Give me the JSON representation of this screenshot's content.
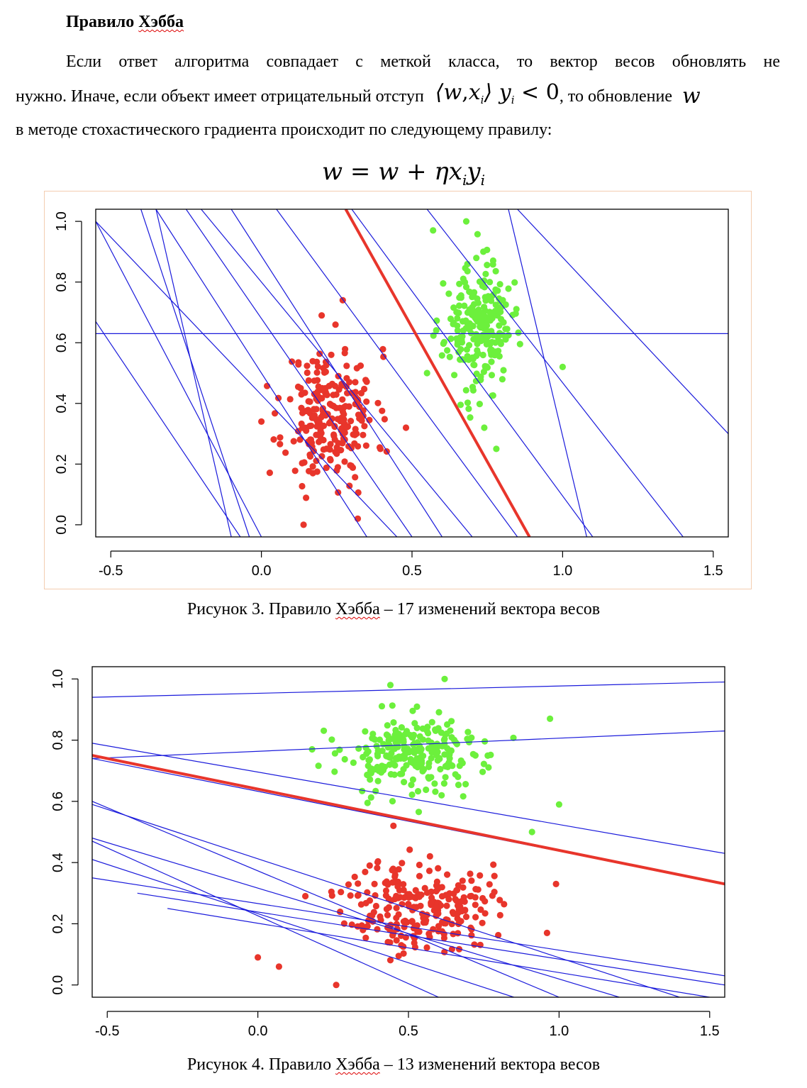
{
  "heading": {
    "prefix": "Правило ",
    "name": "Хэбба"
  },
  "paragraph": {
    "line1": "Если ответ алгоритма совпадает с меткой класса, то вектор весов обновлять не",
    "line2_start": "нужно. Иначе, если объект имеет отрицательный отступ",
    "margin_w": "w",
    "margin_comma": ",",
    "margin_x": "x",
    "margin_i": "i",
    "margin_y": "y",
    "margin_yi": "i",
    "margin_lt0": "< 0",
    "line2_mid": ", то обновление",
    "w_symbol": "w",
    "line3": "в методе стохастического градиента происходит по следующему правилу:"
  },
  "formula": {
    "main": "w = w + ηx",
    "sub1": "i",
    "y": "y",
    "sub2": "i"
  },
  "figures": [
    {
      "caption_prefix": "Рисунок 3. Правило ",
      "caption_name": "Хэбба",
      "caption_suffix": " – 17 изменений вектора весов",
      "colors": {
        "class_neg": "#e8352b",
        "class_pos": "#6cf03c",
        "iteration_line": "#1a1adb",
        "final_line": "#e8352b"
      },
      "chart_data": {
        "type": "scatter",
        "xlim": [
          -0.55,
          1.55
        ],
        "ylim": [
          -0.04,
          1.04
        ],
        "x_ticks": [
          "-0.5",
          "0.0",
          "0.5",
          "1.0",
          "1.5"
        ],
        "y_ticks": [
          "0.0",
          "0.2",
          "0.4",
          "0.6",
          "0.8",
          "1.0"
        ],
        "x_tick_values": [
          -0.5,
          0,
          0.5,
          1,
          1.5
        ],
        "y_tick_values": [
          0,
          0.2,
          0.4,
          0.6,
          0.8,
          1
        ],
        "clusters": [
          {
            "color": "#e8352b",
            "center": [
              0.23,
              0.36
            ],
            "sd": [
              0.075,
              0.11
            ],
            "n": 230,
            "seed": 11,
            "extras": [
              [
                0.14,
                0.0
              ],
              [
                0.32,
                0.02
              ],
              [
                0.27,
                0.74
              ],
              [
                0.2,
                0.69
              ],
              [
                0.0,
                0.34
              ],
              [
                0.48,
                0.32
              ]
            ]
          },
          {
            "color": "#6cf03c",
            "center": [
              0.72,
              0.65
            ],
            "sd": [
              0.055,
              0.1
            ],
            "n": 230,
            "seed": 23,
            "extras": [
              [
                0.68,
                1.0
              ],
              [
                0.57,
                0.97
              ],
              [
                0.78,
                0.25
              ],
              [
                0.74,
                0.32
              ],
              [
                1.0,
                0.52
              ],
              [
                0.55,
                0.5
              ]
            ]
          }
        ],
        "iteration_lines": [
          [
            [
              0.28,
              1.04
            ],
            [
              0.89,
              -0.04
            ]
          ],
          [
            [
              -0.55,
              1.0
            ],
            [
              0.0,
              -0.04
            ]
          ],
          [
            [
              -0.55,
              0.67
            ],
            [
              -0.07,
              -0.04
            ]
          ],
          [
            [
              -0.35,
              1.04
            ],
            [
              -0.1,
              -0.04
            ]
          ],
          [
            [
              -0.4,
              1.04
            ],
            [
              -0.04,
              -0.04
            ]
          ],
          [
            [
              -0.1,
              1.04
            ],
            [
              0.6,
              -0.04
            ]
          ],
          [
            [
              0.05,
              1.04
            ],
            [
              0.85,
              -0.04
            ]
          ],
          [
            [
              0.3,
              1.04
            ],
            [
              1.1,
              -0.04
            ]
          ],
          [
            [
              0.55,
              1.04
            ],
            [
              1.4,
              -0.04
            ]
          ],
          [
            [
              0.85,
              1.04
            ],
            [
              1.55,
              0.3
            ]
          ],
          [
            [
              0.82,
              1.04
            ],
            [
              1.08,
              -0.04
            ]
          ],
          [
            [
              -0.2,
              1.04
            ],
            [
              0.7,
              -0.04
            ]
          ],
          [
            [
              -0.25,
              1.04
            ],
            [
              0.5,
              -0.04
            ]
          ],
          [
            [
              -0.35,
              1.04
            ],
            [
              0.35,
              -0.04
            ]
          ],
          [
            [
              -0.55,
              1.0
            ],
            [
              0.45,
              -0.04
            ]
          ],
          [
            [
              -0.55,
              0.63
            ],
            [
              1.55,
              0.63
            ]
          ]
        ],
        "final_line": [
          [
            0.28,
            1.04
          ],
          [
            0.89,
            -0.04
          ]
        ]
      }
    },
    {
      "caption_prefix": "Рисунок 4. Правило ",
      "caption_name": "Хэбба",
      "caption_suffix": " – 13 изменений вектора весов",
      "colors": {
        "class_neg": "#e8352b",
        "class_pos": "#6cf03c",
        "iteration_line": "#1a1adb",
        "final_line": "#e8352b"
      },
      "chart_data": {
        "type": "scatter",
        "xlim": [
          -0.55,
          1.55
        ],
        "ylim": [
          -0.04,
          1.04
        ],
        "x_ticks": [
          "-0.5",
          "0.0",
          "0.5",
          "1.0",
          "1.5"
        ],
        "y_ticks": [
          "0.0",
          "0.2",
          "0.4",
          "0.6",
          "0.8",
          "1.0"
        ],
        "x_tick_values": [
          -0.5,
          0,
          0.5,
          1,
          1.5
        ],
        "y_tick_values": [
          0,
          0.2,
          0.4,
          0.6,
          0.8,
          1
        ],
        "clusters": [
          {
            "color": "#e8352b",
            "center": [
              0.53,
              0.26
            ],
            "sd": [
              0.12,
              0.075
            ],
            "n": 240,
            "seed": 37,
            "extras": [
              [
                0.0,
                0.09
              ],
              [
                0.07,
                0.06
              ],
              [
                0.26,
                0.0
              ],
              [
                0.96,
                0.17
              ],
              [
                0.99,
                0.33
              ],
              [
                0.45,
                0.52
              ]
            ]
          },
          {
            "color": "#6cf03c",
            "center": [
              0.52,
              0.75
            ],
            "sd": [
              0.12,
              0.065
            ],
            "n": 240,
            "seed": 53,
            "extras": [
              [
                0.62,
                1.0
              ],
              [
                0.44,
                0.98
              ],
              [
                0.97,
                0.87
              ],
              [
                1.0,
                0.59
              ],
              [
                0.91,
                0.5
              ],
              [
                0.18,
                0.77
              ]
            ]
          }
        ],
        "iteration_lines": [
          [
            [
              -0.55,
              0.94
            ],
            [
              1.55,
              0.99
            ]
          ],
          [
            [
              -0.55,
              0.74
            ],
            [
              1.55,
              0.83
            ]
          ],
          [
            [
              -0.55,
              0.79
            ],
            [
              1.55,
              0.43
            ]
          ],
          [
            [
              -0.55,
              0.74
            ],
            [
              1.55,
              0.33
            ]
          ],
          [
            [
              -0.55,
              0.59
            ],
            [
              1.4,
              -0.04
            ]
          ],
          [
            [
              -0.55,
              0.48
            ],
            [
              1.2,
              -0.04
            ]
          ],
          [
            [
              -0.55,
              0.41
            ],
            [
              0.85,
              -0.04
            ]
          ],
          [
            [
              -0.55,
              0.47
            ],
            [
              0.6,
              -0.04
            ]
          ],
          [
            [
              -0.55,
              0.35
            ],
            [
              1.55,
              0.03
            ]
          ],
          [
            [
              -0.4,
              0.3
            ],
            [
              1.55,
              0.0
            ]
          ],
          [
            [
              -0.3,
              0.25
            ],
            [
              1.5,
              -0.04
            ]
          ],
          [
            [
              -0.55,
              0.6
            ],
            [
              1.0,
              -0.04
            ]
          ]
        ],
        "final_line": [
          [
            -0.55,
            0.75
          ],
          [
            1.55,
            0.33
          ]
        ]
      }
    }
  ]
}
